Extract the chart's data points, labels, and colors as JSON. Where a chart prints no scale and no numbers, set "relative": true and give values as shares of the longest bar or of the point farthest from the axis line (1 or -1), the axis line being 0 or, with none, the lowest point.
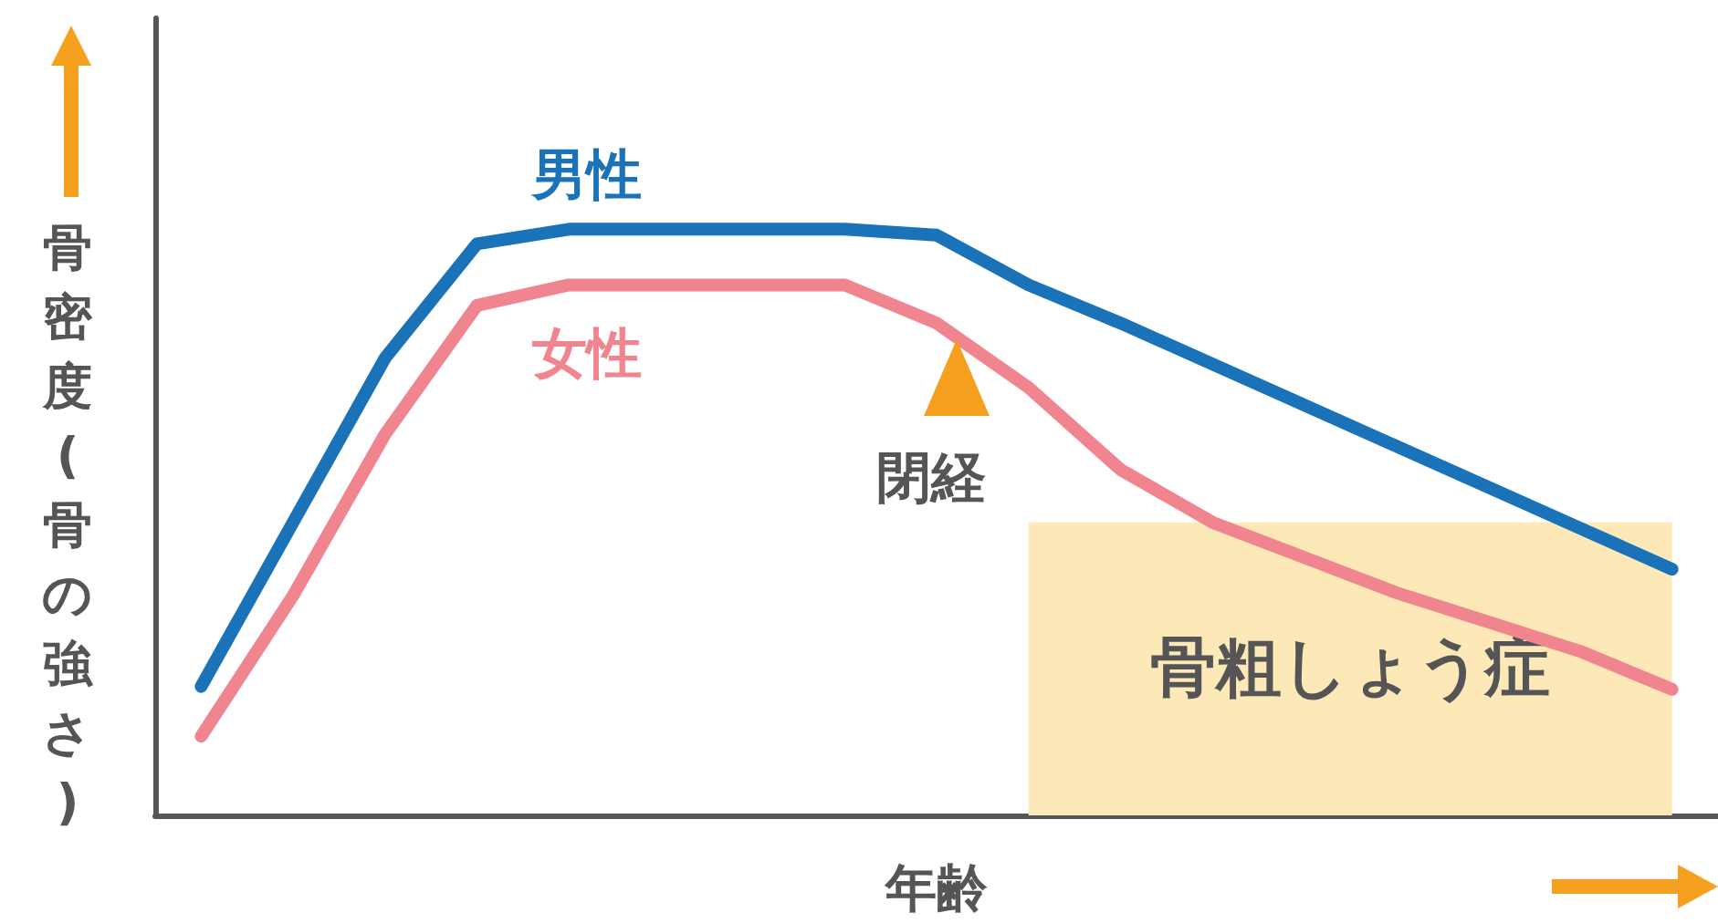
{
  "chart_data": {
    "type": "line",
    "relative": true,
    "xlabel": "年齢",
    "ylabel": "骨密度(骨の強さ)",
    "categories": [
      null,
      null,
      null,
      null,
      null,
      null,
      null,
      null,
      null,
      null,
      null,
      null,
      null,
      null,
      null,
      null,
      null
    ],
    "series": [
      {
        "name": "男性",
        "color": "#1a72b8",
        "values": [
          0.22,
          0.5,
          0.78,
          0.975,
          1.0,
          1.0,
          1.0,
          1.0,
          0.99,
          0.905,
          0.84,
          0.77,
          0.7,
          0.63,
          0.56,
          0.49,
          0.42
        ]
      },
      {
        "name": "女性",
        "color": "#f0848f",
        "values": [
          0.135,
          0.375,
          0.65,
          0.87,
          0.905,
          0.905,
          0.905,
          0.905,
          0.84,
          0.73,
          0.59,
          0.5,
          0.44,
          0.38,
          0.33,
          0.28,
          0.215
        ]
      }
    ],
    "bands": [
      {
        "axis": "y",
        "from": 0,
        "to": 0.5,
        "label": "骨粗しょう症",
        "color": "#fde9b8"
      }
    ],
    "annotations": [
      "閉経"
    ],
    "grid": false,
    "line_style": "solid"
  }
}
